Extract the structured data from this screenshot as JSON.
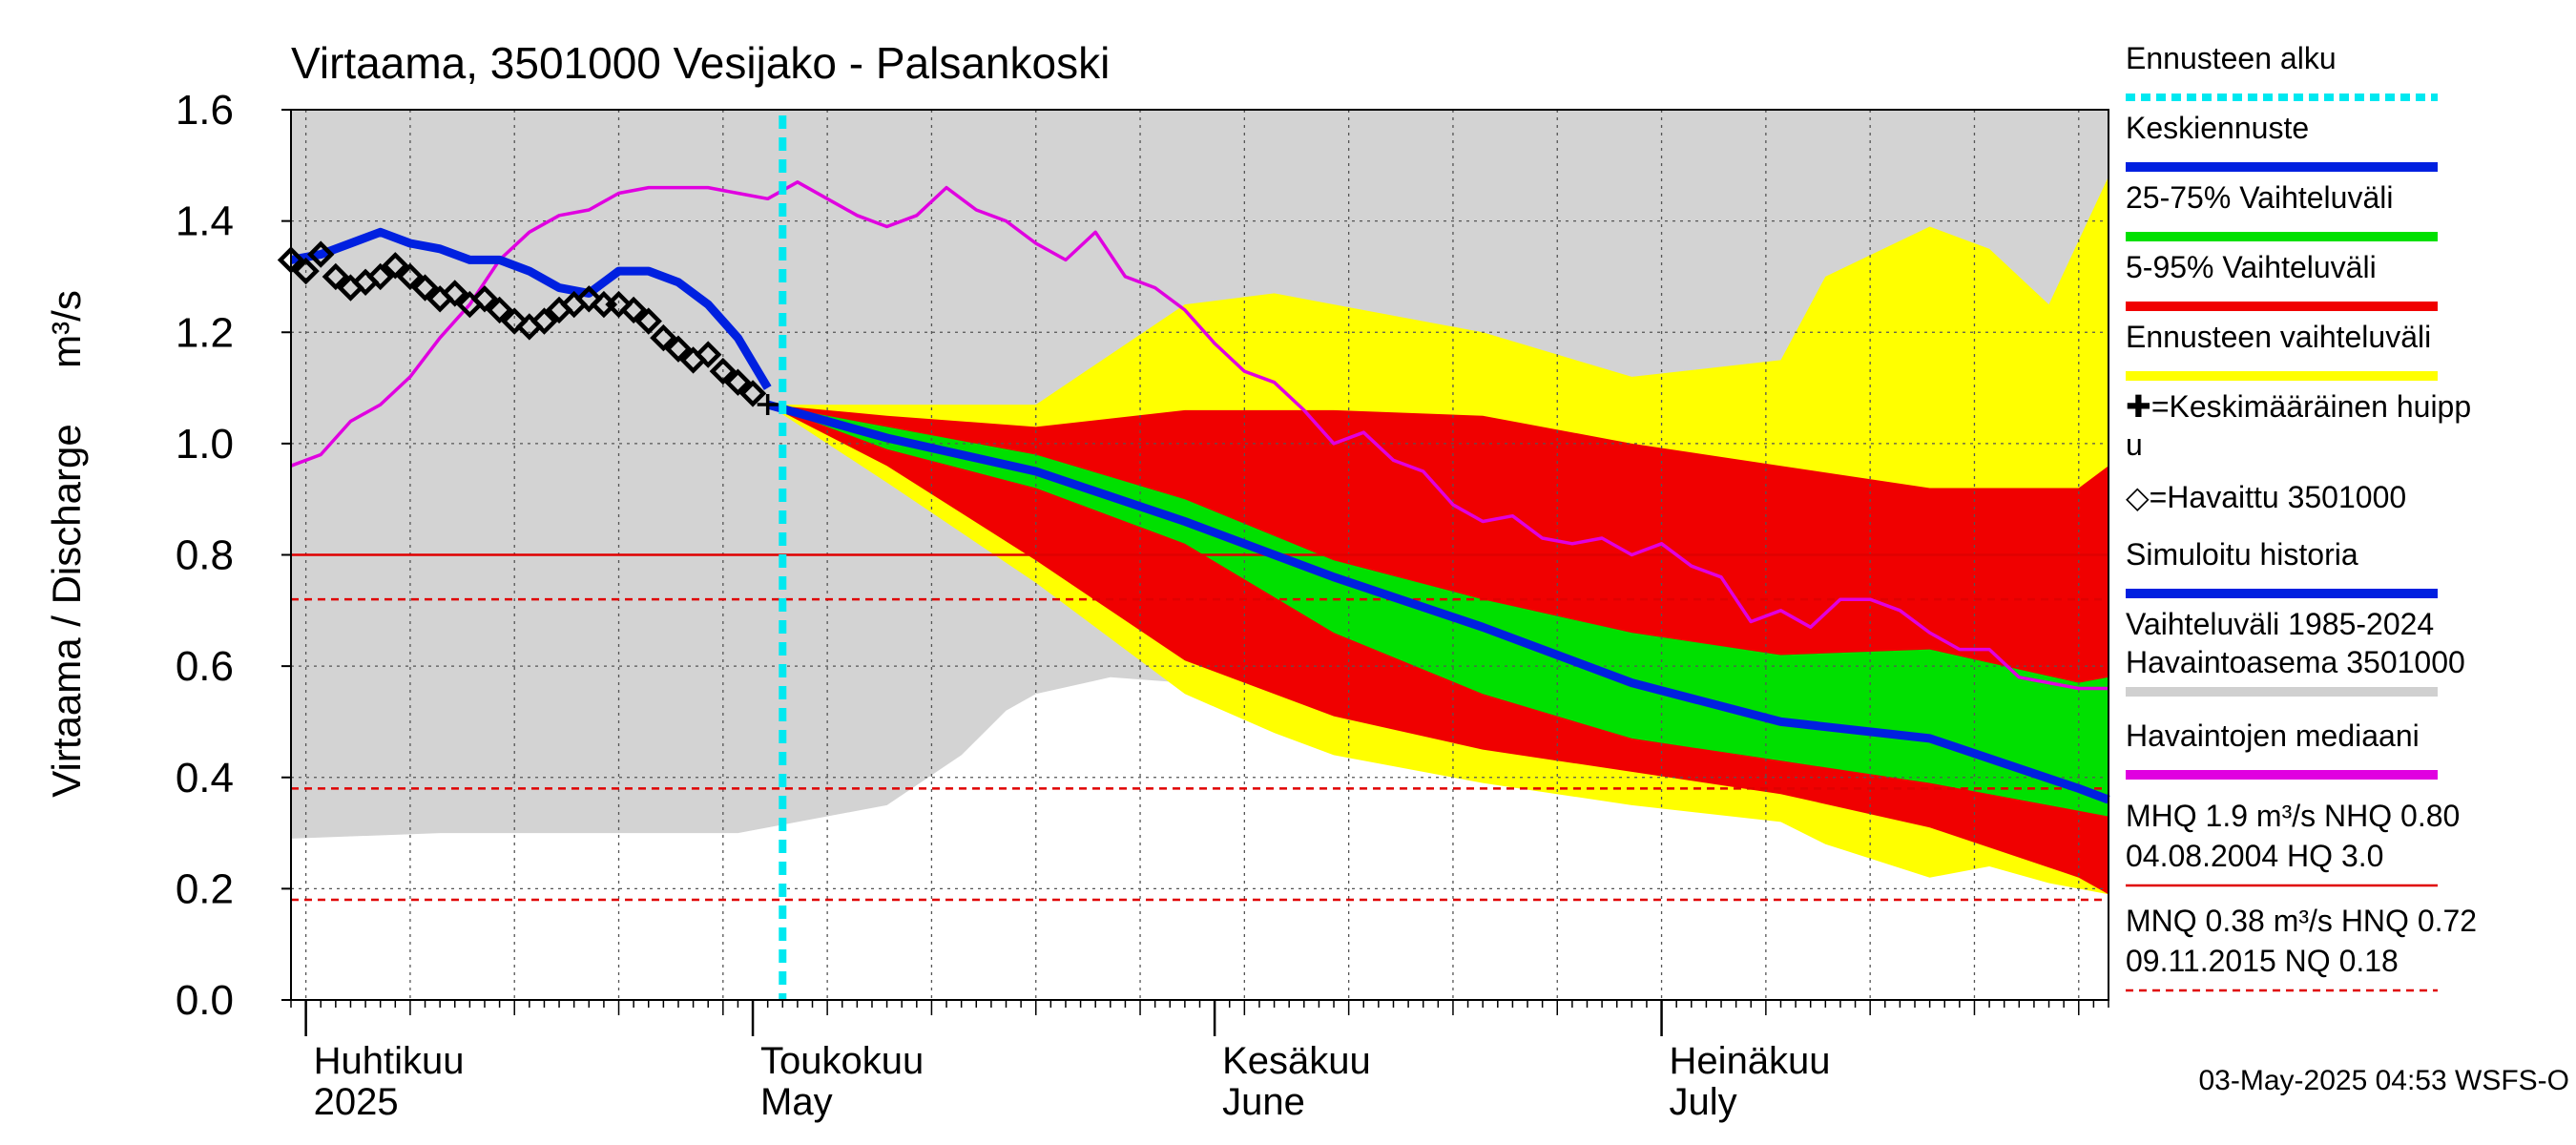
{
  "chart_data": {
    "type": "area",
    "title": "Virtaama, 3501000 Vesijako - Palsankoski",
    "ylabel": "Virtaama / Discharge",
    "yunit": "m³/s",
    "ylim": [
      0,
      1.6
    ],
    "yticks": [
      "0.0",
      "0.2",
      "0.4",
      "0.6",
      "0.8",
      "1.0",
      "1.2",
      "1.4",
      "1.6"
    ],
    "xlim": [
      "2025-03-31",
      "2025-07-31"
    ],
    "grid": "weekly",
    "month_labels": [
      {
        "fi": "Huhtikuu",
        "en": "2025",
        "date": "2025-04-01"
      },
      {
        "fi": "Toukokuu",
        "en": "May",
        "date": "2025-05-01"
      },
      {
        "fi": "Kesäkuu",
        "en": "June",
        "date": "2025-06-01"
      },
      {
        "fi": "Heinäkuu",
        "en": "July",
        "date": "2025-07-01"
      }
    ],
    "forecast_start": "2025-05-03",
    "reference_lines": [
      {
        "name": "NHQ",
        "value": 0.8,
        "style": "solid",
        "color": "#e00000"
      },
      {
        "name": "HNQ",
        "value": 0.72,
        "style": "dashed",
        "color": "#e00000"
      },
      {
        "name": "MNQ",
        "value": 0.38,
        "style": "dashed",
        "color": "#e00000"
      },
      {
        "name": "NQ",
        "value": 0.18,
        "style": "dashed",
        "color": "#e00000"
      }
    ],
    "legend": {
      "position": "right",
      "items": [
        {
          "label": "Ennusteen alku",
          "color": "#00e8f0",
          "style": "dotted"
        },
        {
          "label": "Keskiennuste",
          "color": "#0020e0",
          "style": "line"
        },
        {
          "label": "25-75% Vaihteluväli",
          "color": "#00e000",
          "style": "line"
        },
        {
          "label": "5-95% Vaihteluväli",
          "color": "#f00000",
          "style": "line"
        },
        {
          "label": "Ennusteen vaihteluväli",
          "color": "#ffff00",
          "style": "line"
        },
        {
          "label": "✚=Keskimääräinen huipp",
          "label2": "u",
          "color": "#000000",
          "style": "none"
        },
        {
          "label": "◇=Havaittu 3501000",
          "color": "#000000",
          "style": "none"
        },
        {
          "label": "Simuloitu historia",
          "color": "#0020e0",
          "style": "line"
        },
        {
          "label": "Vaihteluväli 1985-2024",
          "label2": " Havaintoasema 3501000",
          "color": "#d0d0d0",
          "style": "line"
        },
        {
          "label": "Havaintojen mediaani",
          "color": "#e000e0",
          "style": "line"
        }
      ],
      "stats": [
        {
          "line1": "MHQ  1.9 m³/s NHQ 0.80",
          "line2": "04.08.2004 HQ  3.0",
          "color": "#e00000",
          "style": "solid"
        },
        {
          "line1": "MNQ 0.38 m³/s HNQ 0.72",
          "line2": "09.11.2015 NQ 0.18",
          "color": "#e00000",
          "style": "dashed"
        }
      ]
    },
    "footer": "03-May-2025 04:53 WSFS-O",
    "colors": {
      "history_range": "#d3d3d3",
      "forecast_range": "#ffff00",
      "p5_95": "#f00000",
      "p25_75": "#00e000",
      "mean_forecast": "#0020e0",
      "simulated": "#0020e0",
      "median": "#e000e0",
      "observed": "#000000",
      "forecast_start": "#00e8f0",
      "ref_line": "#e00000"
    },
    "series": {
      "history_range": {
        "days": [
          0,
          10,
          20,
          30,
          40,
          45,
          48,
          50,
          55,
          60,
          70,
          80,
          90,
          100,
          110,
          116,
          122
        ],
        "upper": [
          1.6,
          1.6,
          1.6,
          1.6,
          1.6,
          1.6,
          1.6,
          1.6,
          1.6,
          1.6,
          1.6,
          1.6,
          1.6,
          1.6,
          1.6,
          1.6,
          1.6
        ],
        "lower": [
          0.29,
          0.3,
          0.3,
          0.3,
          0.35,
          0.44,
          0.52,
          0.55,
          0.58,
          0.57,
          0.52,
          0.48,
          0.44,
          0.39,
          0.33,
          0.28,
          0.25
        ]
      },
      "forecast_range": {
        "days": [
          32,
          40,
          50,
          60,
          66,
          70,
          80,
          90,
          100,
          103,
          110,
          114,
          118,
          122
        ],
        "upper": [
          1.07,
          1.07,
          1.07,
          1.25,
          1.27,
          1.25,
          1.2,
          1.12,
          1.15,
          1.3,
          1.39,
          1.35,
          1.25,
          1.48
        ],
        "lower": [
          1.07,
          0.93,
          0.75,
          0.55,
          0.48,
          0.44,
          0.39,
          0.35,
          0.32,
          0.28,
          0.22,
          0.24,
          0.21,
          0.19
        ]
      },
      "p5_95": {
        "days": [
          32,
          40,
          50,
          60,
          70,
          80,
          90,
          100,
          110,
          120,
          122
        ],
        "upper": [
          1.07,
          1.05,
          1.03,
          1.06,
          1.06,
          1.05,
          1.0,
          0.96,
          0.92,
          0.92,
          0.96
        ],
        "lower": [
          1.07,
          0.96,
          0.79,
          0.61,
          0.51,
          0.45,
          0.41,
          0.37,
          0.31,
          0.22,
          0.19
        ]
      },
      "p25_75": {
        "days": [
          32,
          40,
          50,
          60,
          70,
          80,
          90,
          100,
          110,
          120,
          122
        ],
        "upper": [
          1.07,
          1.03,
          0.98,
          0.9,
          0.79,
          0.72,
          0.66,
          0.62,
          0.63,
          0.57,
          0.58
        ],
        "lower": [
          1.07,
          0.99,
          0.92,
          0.82,
          0.66,
          0.55,
          0.47,
          0.43,
          0.39,
          0.34,
          0.33
        ]
      },
      "simulated": {
        "days": [
          0,
          2,
          4,
          6,
          8,
          10,
          12,
          14,
          16,
          18,
          20,
          22,
          24,
          26,
          28,
          30,
          32
        ],
        "values": [
          1.33,
          1.34,
          1.36,
          1.38,
          1.36,
          1.35,
          1.33,
          1.33,
          1.31,
          1.28,
          1.27,
          1.31,
          1.31,
          1.29,
          1.25,
          1.19,
          1.1
        ]
      },
      "mean_forecast": {
        "days": [
          32,
          40,
          50,
          60,
          70,
          80,
          90,
          100,
          110,
          120,
          122
        ],
        "values": [
          1.07,
          1.01,
          0.95,
          0.86,
          0.76,
          0.67,
          0.57,
          0.5,
          0.47,
          0.38,
          0.36
        ]
      },
      "median": {
        "days": [
          0,
          2,
          4,
          6,
          8,
          10,
          12,
          14,
          16,
          18,
          20,
          22,
          24,
          26,
          28,
          30,
          32,
          34,
          36,
          38,
          40,
          42,
          44,
          46,
          48,
          50,
          52,
          54,
          56,
          58,
          60,
          62,
          64,
          66,
          68,
          70,
          72,
          74,
          76,
          78,
          80,
          82,
          84,
          86,
          88,
          90,
          92,
          94,
          96,
          98,
          100,
          102,
          104,
          106,
          108,
          110,
          112,
          114,
          116,
          118,
          120,
          122
        ],
        "values": [
          0.96,
          0.98,
          1.04,
          1.07,
          1.12,
          1.19,
          1.25,
          1.33,
          1.38,
          1.41,
          1.42,
          1.45,
          1.46,
          1.46,
          1.46,
          1.45,
          1.44,
          1.47,
          1.44,
          1.41,
          1.39,
          1.41,
          1.46,
          1.42,
          1.4,
          1.36,
          1.33,
          1.38,
          1.3,
          1.28,
          1.24,
          1.18,
          1.13,
          1.11,
          1.06,
          1.0,
          1.02,
          0.97,
          0.95,
          0.89,
          0.86,
          0.87,
          0.83,
          0.82,
          0.83,
          0.8,
          0.82,
          0.78,
          0.76,
          0.68,
          0.7,
          0.67,
          0.72,
          0.72,
          0.7,
          0.66,
          0.63,
          0.63,
          0.58,
          0.57,
          0.56,
          0.56
        ]
      },
      "observed": {
        "days": [
          0,
          1,
          2,
          3,
          4,
          5,
          6,
          7,
          8,
          9,
          10,
          11,
          12,
          13,
          14,
          15,
          16,
          17,
          18,
          19,
          20,
          21,
          22,
          23,
          24,
          25,
          26,
          27,
          28,
          29,
          30,
          31
        ],
        "values": [
          1.33,
          1.31,
          1.34,
          1.3,
          1.28,
          1.29,
          1.3,
          1.32,
          1.3,
          1.28,
          1.26,
          1.27,
          1.25,
          1.26,
          1.24,
          1.22,
          1.21,
          1.22,
          1.24,
          1.25,
          1.26,
          1.25,
          1.25,
          1.24,
          1.22,
          1.19,
          1.17,
          1.15,
          1.16,
          1.13,
          1.11,
          1.09
        ]
      },
      "mean_peak": {
        "day": 32,
        "value": 1.07
      }
    }
  }
}
